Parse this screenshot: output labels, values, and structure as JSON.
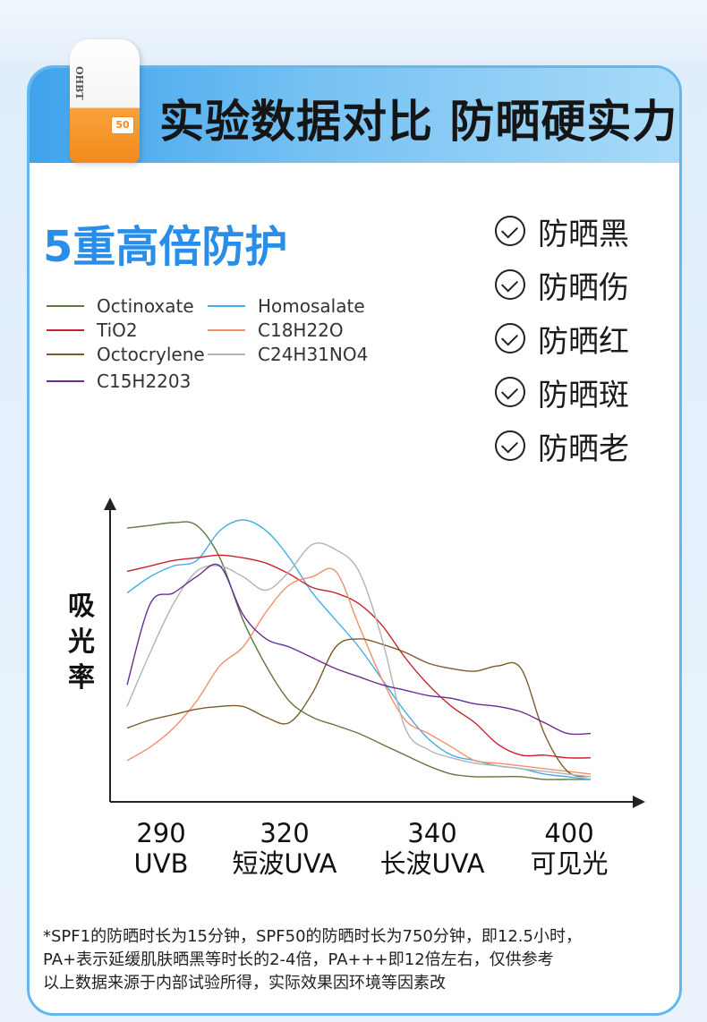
{
  "header": {
    "title": "实验数据对比 防晒硬实力"
  },
  "product": {
    "brand": "OHBT",
    "spf": "50"
  },
  "subtitle": "5重高倍防护",
  "checks": [
    {
      "label": "防晒黑"
    },
    {
      "label": "防晒伤"
    },
    {
      "label": "防晒红"
    },
    {
      "label": "防晒斑"
    },
    {
      "label": "防晒老"
    }
  ],
  "colors": {
    "accent": "#2a8de8",
    "header_gradient_start": "#3fa3ec",
    "header_gradient_end": "#a9dbf8",
    "border": "#63b7ee"
  },
  "chart_data": {
    "type": "line",
    "title": "",
    "ylabel": "吸光率",
    "xlabel": "",
    "x_ticks": [
      {
        "value": "290",
        "sub": "UVB"
      },
      {
        "value": "320",
        "sub": "短波UVA"
      },
      {
        "value": "340",
        "sub": "长波UVA"
      },
      {
        "value": "400",
        "sub": "可见光"
      }
    ],
    "grid": false,
    "legend_placement": "top-left",
    "x": [
      0,
      0.05,
      0.1,
      0.15,
      0.2,
      0.25,
      0.3,
      0.35,
      0.4,
      0.45,
      0.5,
      0.55,
      0.6,
      0.65,
      0.7,
      0.75,
      0.8,
      0.85,
      0.9,
      0.95,
      1.0
    ],
    "series": [
      {
        "name": "Octinoxate",
        "color": "#5c7a3e",
        "values": [
          0.96,
          0.97,
          0.98,
          0.97,
          0.85,
          0.62,
          0.45,
          0.32,
          0.26,
          0.23,
          0.2,
          0.16,
          0.12,
          0.08,
          0.05,
          0.04,
          0.04,
          0.04,
          0.03,
          0.03,
          0.03
        ]
      },
      {
        "name": "Homosalate",
        "color": "#42aee8",
        "values": [
          0.72,
          0.78,
          0.82,
          0.84,
          0.95,
          0.99,
          0.95,
          0.85,
          0.72,
          0.62,
          0.52,
          0.4,
          0.28,
          0.18,
          0.12,
          0.1,
          0.08,
          0.07,
          0.05,
          0.04,
          0.03
        ]
      },
      {
        "name": "TiO2",
        "color": "#c8202e",
        "values": [
          0.8,
          0.82,
          0.84,
          0.85,
          0.86,
          0.85,
          0.83,
          0.79,
          0.74,
          0.72,
          0.68,
          0.6,
          0.48,
          0.38,
          0.3,
          0.24,
          0.16,
          0.12,
          0.12,
          0.11,
          0.11
        ]
      },
      {
        "name": "C18H22O",
        "color": "#f0906a",
        "values": [
          0.1,
          0.15,
          0.22,
          0.32,
          0.45,
          0.52,
          0.65,
          0.75,
          0.78,
          0.8,
          0.6,
          0.4,
          0.25,
          0.2,
          0.15,
          0.1,
          0.09,
          0.08,
          0.07,
          0.06,
          0.05
        ]
      },
      {
        "name": "Octocrylene",
        "color": "#7b5b2a",
        "values": [
          0.22,
          0.25,
          0.27,
          0.29,
          0.3,
          0.3,
          0.26,
          0.24,
          0.35,
          0.52,
          0.55,
          0.53,
          0.5,
          0.46,
          0.44,
          0.43,
          0.45,
          0.44,
          0.2,
          0.06,
          0.04
        ]
      },
      {
        "name": "C24H31NO4",
        "color": "#b3b3b3",
        "values": [
          0.3,
          0.5,
          0.68,
          0.8,
          0.82,
          0.78,
          0.73,
          0.8,
          0.9,
          0.88,
          0.8,
          0.55,
          0.22,
          0.14,
          0.11,
          0.09,
          0.08,
          0.07,
          0.06,
          0.05,
          0.04
        ]
      },
      {
        "name": "C15H2203",
        "color": "#6a2d92",
        "values": [
          0.38,
          0.68,
          0.72,
          0.78,
          0.82,
          0.64,
          0.55,
          0.52,
          0.48,
          0.44,
          0.41,
          0.38,
          0.36,
          0.34,
          0.33,
          0.31,
          0.3,
          0.28,
          0.24,
          0.2,
          0.2
        ]
      }
    ]
  },
  "footnote": [
    "*SPF1的防晒时长为15分钟，SPF50的防晒时长为750分钟，即12.5小时，",
    "PA+表示延缓肌肤晒黑等时长的2-4倍，PA+++即12倍左右，仅供参考",
    "以上数据来源于内部试验所得，实际效果因环境等因素改"
  ]
}
